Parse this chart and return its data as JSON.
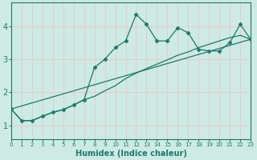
{
  "xlabel": "Humidex (Indice chaleur)",
  "ylabel": "",
  "bg_color": "#ceeae4",
  "line_color": "#1a7a6a",
  "grid_color": "#e8c8c8",
  "xlim": [
    0,
    23
  ],
  "ylim": [
    0.6,
    4.7
  ],
  "yticks": [
    1,
    2,
    3,
    4
  ],
  "xticks": [
    0,
    1,
    2,
    3,
    4,
    5,
    6,
    7,
    8,
    9,
    10,
    11,
    12,
    13,
    14,
    15,
    16,
    17,
    18,
    19,
    20,
    21,
    22,
    23
  ],
  "line1_x": [
    0,
    1,
    2,
    3,
    4,
    5,
    6,
    7,
    8,
    9,
    10,
    11,
    12,
    13,
    14,
    15,
    16,
    17,
    18,
    19,
    20,
    21,
    22,
    23
  ],
  "line1_y": [
    1.5,
    1.15,
    1.15,
    1.28,
    1.4,
    1.48,
    1.62,
    1.78,
    2.75,
    3.0,
    3.35,
    3.55,
    4.35,
    4.05,
    3.55,
    3.55,
    3.95,
    3.8,
    3.3,
    3.25,
    3.25,
    3.5,
    4.05,
    3.6
  ],
  "line2_x": [
    0,
    1,
    2,
    3,
    4,
    5,
    6,
    7,
    8,
    9,
    10,
    11,
    12,
    13,
    14,
    15,
    16,
    17,
    18,
    19,
    20,
    21,
    22,
    23
  ],
  "line2_y": [
    1.5,
    1.15,
    1.15,
    1.28,
    1.4,
    1.48,
    1.62,
    1.78,
    1.88,
    2.05,
    2.2,
    2.42,
    2.58,
    2.72,
    2.85,
    2.98,
    3.12,
    3.22,
    3.35,
    3.45,
    3.55,
    3.65,
    3.72,
    3.6
  ],
  "line3_x": [
    0,
    23
  ],
  "line3_y": [
    1.5,
    3.6
  ],
  "marker": "D",
  "markersize": 2.5
}
